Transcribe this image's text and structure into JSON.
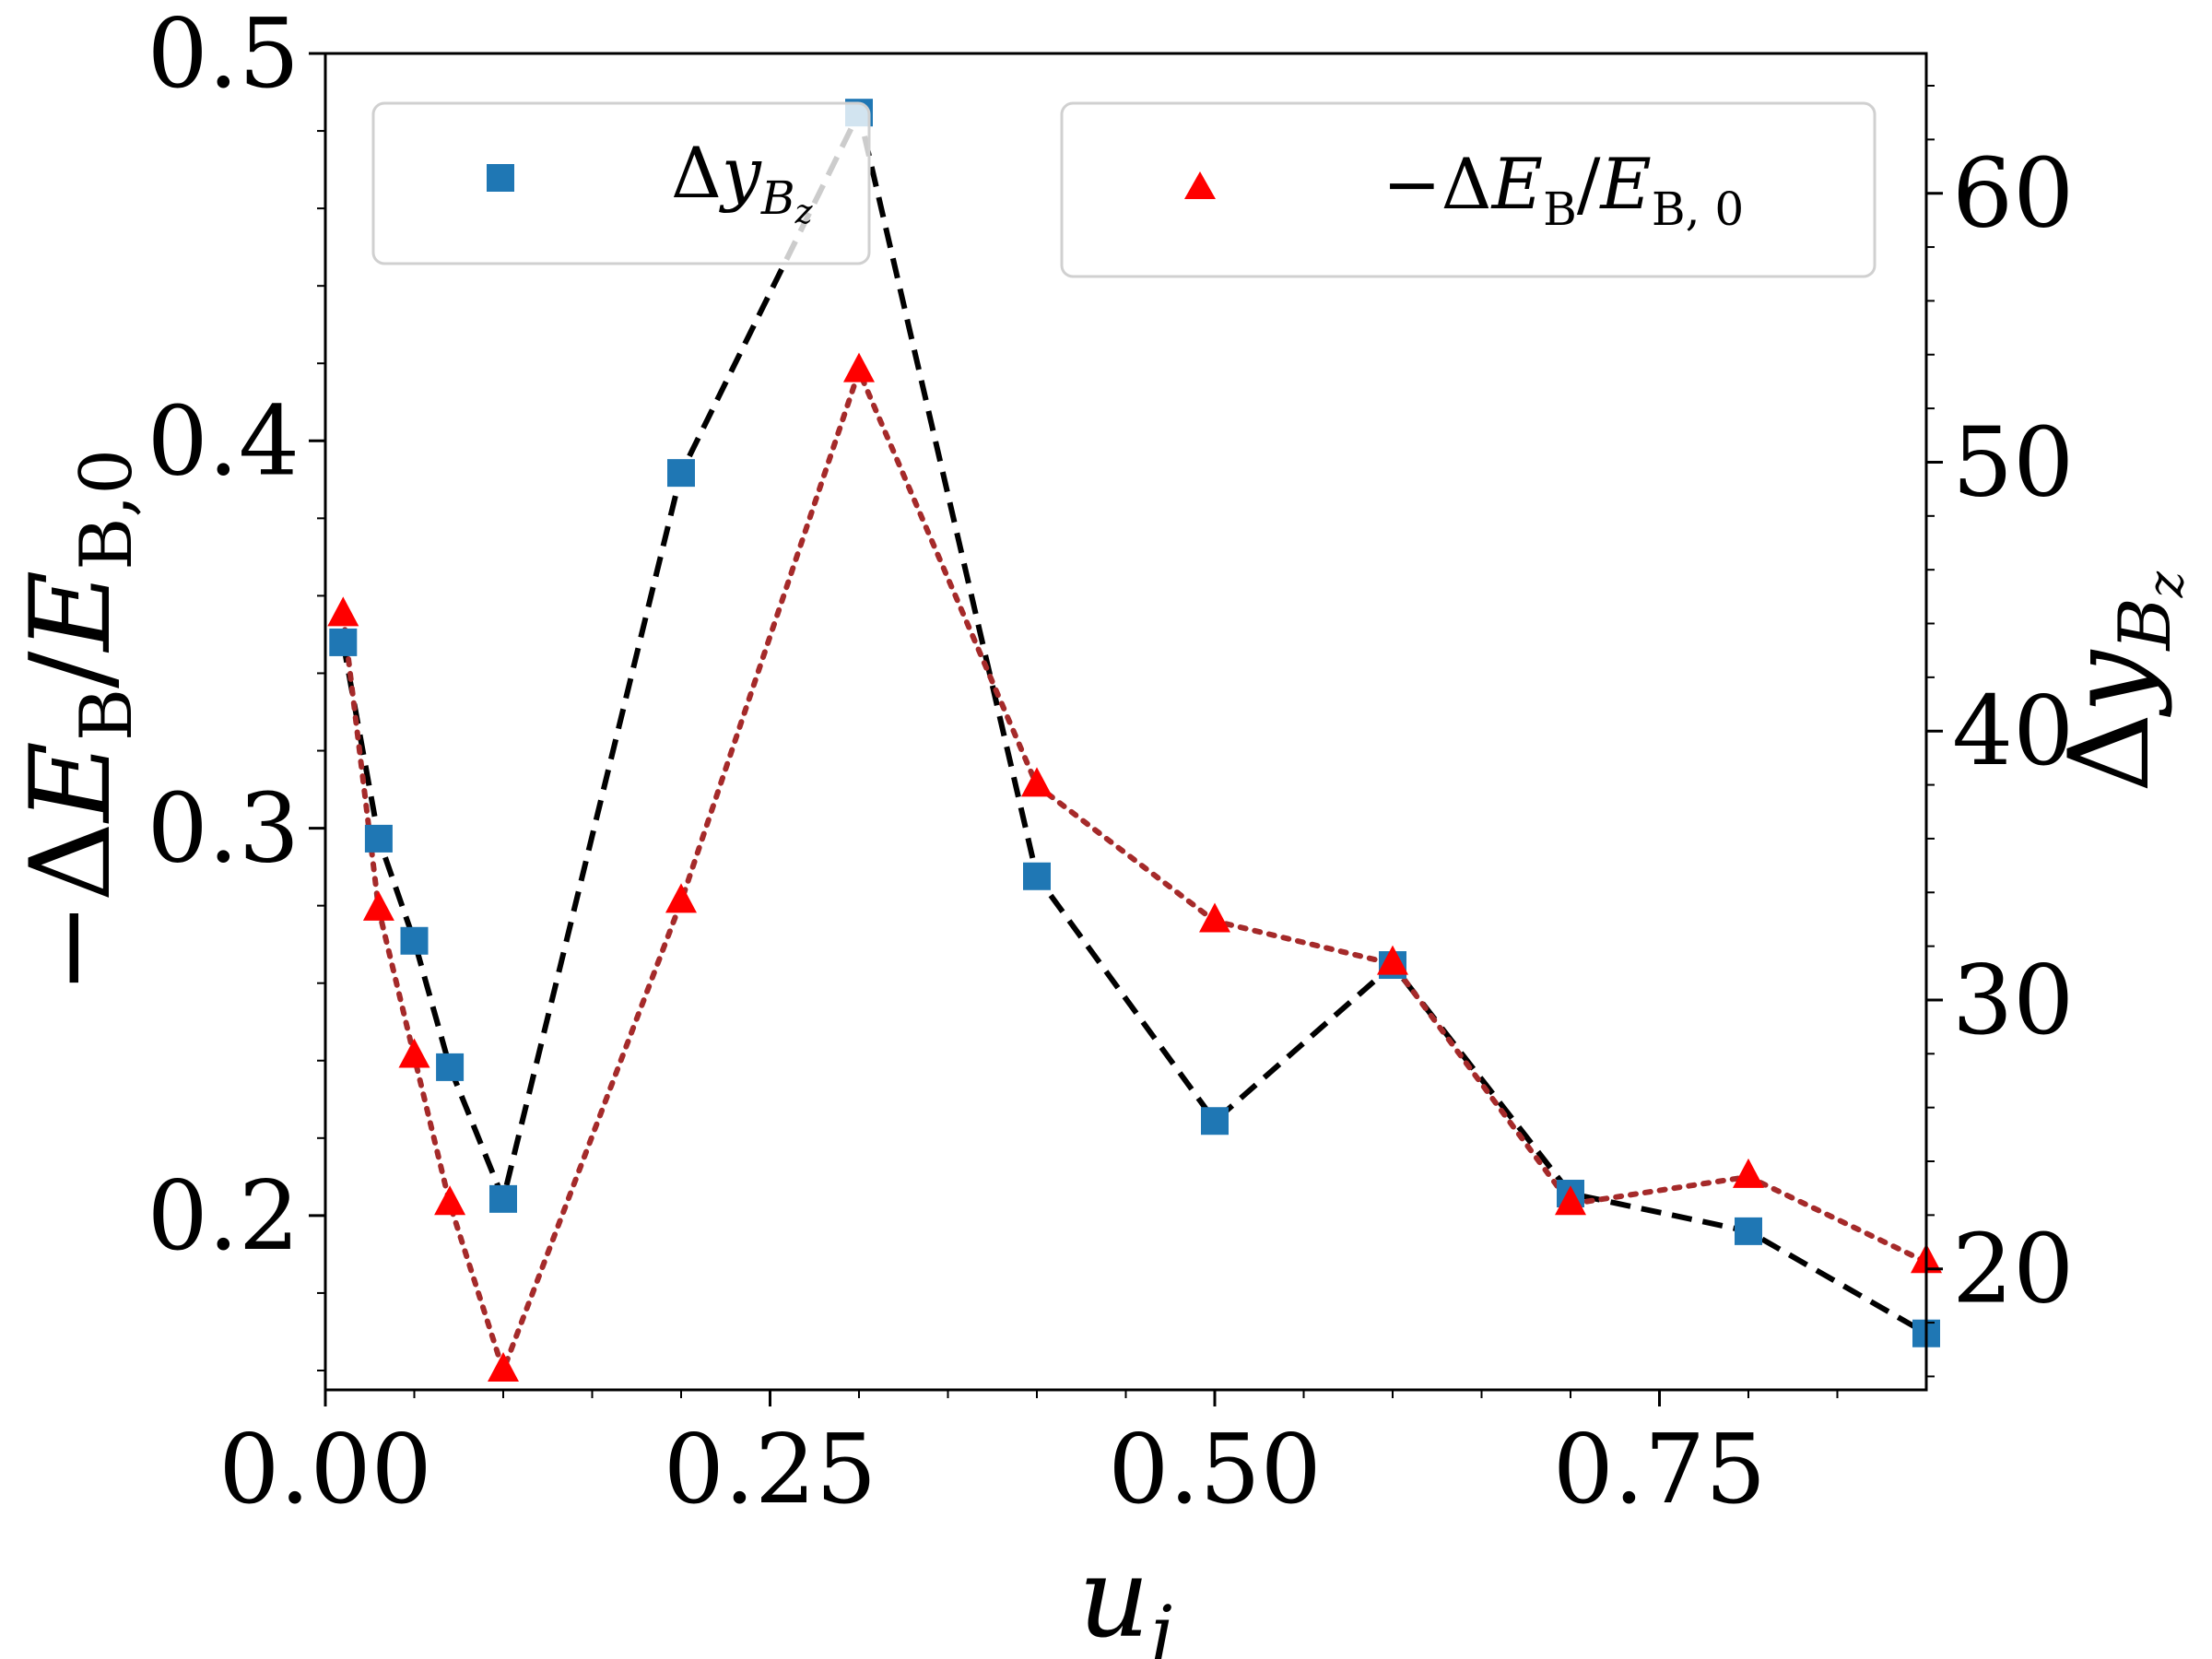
{
  "chart_data": {
    "type": "line",
    "title": "",
    "xlabel": "u_j",
    "ylabel_left": "−ΔE_B/E_B,0",
    "ylabel_right": "Δy_Bz",
    "xlim": [
      0.0,
      0.9
    ],
    "ylim_left": [
      0.155,
      0.5
    ],
    "ylim_right": [
      15.5,
      65.2
    ],
    "x_ticks": [
      0.0,
      0.25,
      0.5,
      0.75
    ],
    "x_tick_labels": [
      "0.00",
      "0.25",
      "0.50",
      "0.75"
    ],
    "y_left_ticks": [
      0.2,
      0.3,
      0.4,
      0.5
    ],
    "y_left_tick_labels": [
      "0.2",
      "0.3",
      "0.4",
      "0.5"
    ],
    "y_right_ticks": [
      20,
      30,
      40,
      50,
      60
    ],
    "y_right_tick_labels": [
      "20",
      "30",
      "40",
      "50",
      "60"
    ],
    "grid": false,
    "series": [
      {
        "name": "Δy_Bz",
        "axis": "right",
        "marker": "square",
        "marker_color": "#1f77b4",
        "line_style": "dashed",
        "line_color": "#000000",
        "x": [
          0.01,
          0.03,
          0.05,
          0.07,
          0.1,
          0.2,
          0.3,
          0.4,
          0.5,
          0.6,
          0.7,
          0.8,
          0.9
        ],
        "values": [
          43.3,
          36.0,
          32.2,
          27.5,
          22.6,
          49.6,
          63.0,
          34.6,
          25.5,
          31.3,
          22.8,
          21.4,
          17.6
        ]
      },
      {
        "name": "−ΔE_B/E_B,0",
        "axis": "left",
        "marker": "triangle",
        "marker_color": "#ff0000",
        "line_style": "dotted",
        "line_color": "#a52a2a",
        "x": [
          0.01,
          0.03,
          0.05,
          0.07,
          0.1,
          0.2,
          0.3,
          0.4,
          0.5,
          0.6,
          0.7,
          0.8,
          0.9
        ],
        "values": [
          0.355,
          0.279,
          0.241,
          0.203,
          0.16,
          0.281,
          0.418,
          0.311,
          0.276,
          0.265,
          0.203,
          0.21,
          0.188
        ]
      }
    ],
    "legends": [
      {
        "series": "Δy_Bz",
        "placement": "upper-left"
      },
      {
        "series": "−ΔE_B/E_B,0",
        "placement": "upper-right"
      }
    ]
  }
}
